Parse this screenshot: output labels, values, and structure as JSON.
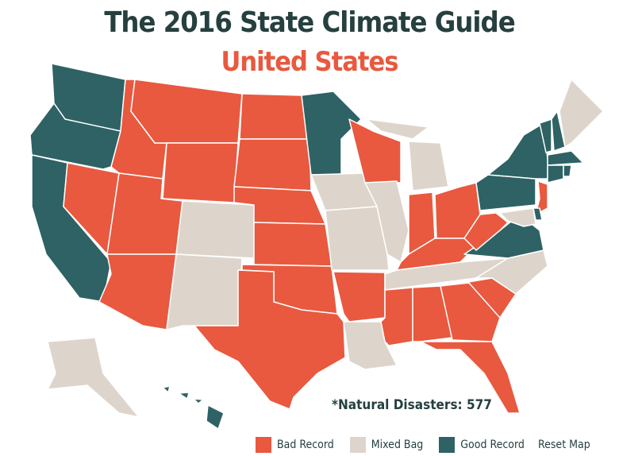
{
  "header": {
    "title": "The 2016 State Climate Guide",
    "subtitle": "United States"
  },
  "annotation": "*Natural Disasters: 577",
  "legend": [
    {
      "label": "Bad Record",
      "color": "#e8593f"
    },
    {
      "label": "Mixed Bag",
      "color": "#ddd5cb"
    },
    {
      "label": "Good Record",
      "color": "#2e6265"
    }
  ],
  "reset_button": "Reset Map"
}
